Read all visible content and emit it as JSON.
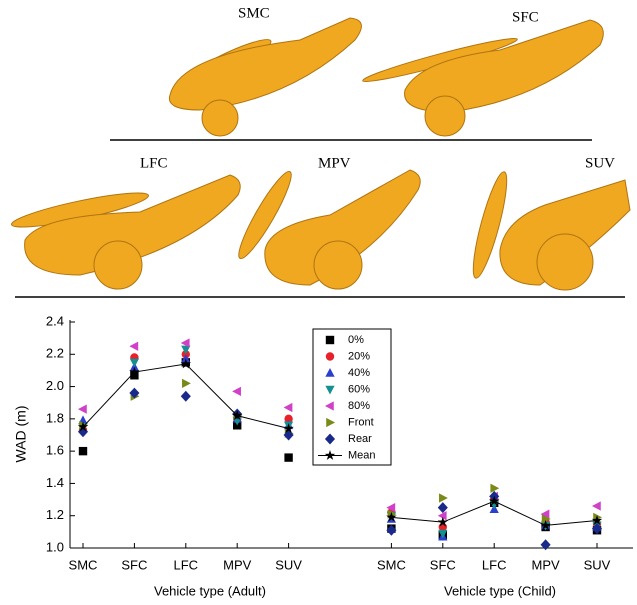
{
  "panels": [
    {
      "label": "SMC"
    },
    {
      "label": "SFC"
    },
    {
      "label": "LFC"
    },
    {
      "label": "MPV"
    },
    {
      "label": "SUV"
    }
  ],
  "chart_data": {
    "type": "scatter",
    "y_label": "WAD (m)",
    "group_labels": [
      "Vehicle type (Adult)",
      "Vehicle type (Child)"
    ],
    "categories": [
      "SMC",
      "SFC",
      "LFC",
      "MPV",
      "SUV",
      null,
      "SMC",
      "SFC",
      "LFC",
      "MPV",
      "SUV"
    ],
    "ylim": [
      1.0,
      2.4
    ],
    "yticks": [
      {
        "value": 1.0,
        "label": "1.0"
      },
      1.2,
      1.4,
      1.6,
      1.8,
      {
        "value": 2.0,
        "label": "2.0"
      },
      2.2,
      2.4
    ],
    "series": [
      {
        "name": "0%",
        "color": "#000000",
        "marker": "square",
        "values": [
          1.6,
          2.07,
          2.15,
          1.76,
          1.56,
          null,
          1.12,
          1.08,
          1.28,
          1.13,
          1.11
        ]
      },
      {
        "name": "20%",
        "color": "#e8202a",
        "marker": "circle",
        "values": [
          1.73,
          2.18,
          2.2,
          1.8,
          1.8,
          null,
          1.22,
          1.13,
          1.3,
          1.16,
          1.15
        ]
      },
      {
        "name": "40%",
        "color": "#2a3fd0",
        "marker": "triangle-up",
        "values": [
          1.79,
          2.12,
          2.17,
          1.8,
          1.76,
          null,
          1.18,
          1.07,
          1.24,
          1.14,
          1.13
        ]
      },
      {
        "name": "60%",
        "color": "#159090",
        "marker": "triangle-down",
        "values": [
          1.75,
          2.15,
          2.23,
          1.79,
          1.76,
          null,
          1.2,
          1.09,
          1.27,
          1.14,
          1.14
        ]
      },
      {
        "name": "80%",
        "color": "#d040c8",
        "marker": "triangle-left",
        "values": [
          1.86,
          2.25,
          2.27,
          1.97,
          1.87,
          null,
          1.25,
          1.2,
          1.32,
          1.21,
          1.26
        ]
      },
      {
        "name": "Front",
        "color": "#7a8a18",
        "marker": "triangle-right",
        "values": [
          1.76,
          1.94,
          2.02,
          1.82,
          1.71,
          null,
          1.21,
          1.31,
          1.37,
          1.18,
          1.19
        ]
      },
      {
        "name": "Rear",
        "color": "#1a2a8a",
        "marker": "diamond",
        "values": [
          1.72,
          1.96,
          1.94,
          1.83,
          1.7,
          null,
          1.11,
          1.25,
          1.32,
          1.02,
          1.12
        ]
      },
      {
        "name": "Mean",
        "color": "#000000",
        "marker": "star",
        "line": true,
        "values": [
          1.75,
          2.09,
          2.14,
          1.82,
          1.74,
          null,
          1.19,
          1.16,
          1.29,
          1.14,
          1.17
        ]
      }
    ]
  }
}
